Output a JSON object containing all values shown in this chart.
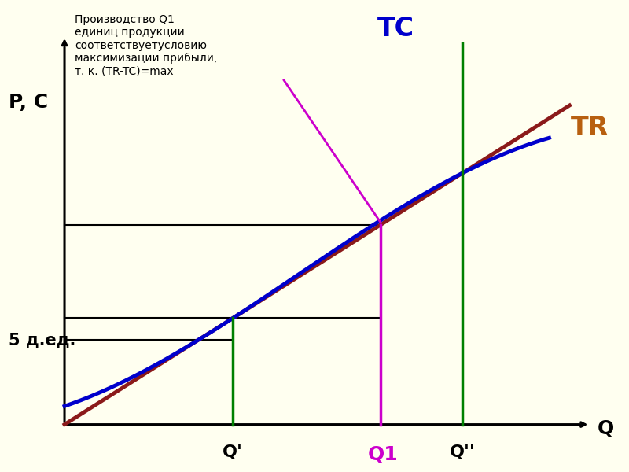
{
  "bg_color": "#FFFFF0",
  "chart_bg": "#FFFFF0",
  "title_text": "Производство Q1\nединиц продукции\nсоответствуетусловию\nмаксимизации прибыли,\nт. к. (TR-TC)=max",
  "ylabel_text": "P, C",
  "xlabel_text": "Q",
  "label_5ded": "5 д.ед.",
  "label_TC": "TC",
  "label_TR": "TR",
  "label_Qprime": "Q'",
  "label_Q1": "Q1",
  "label_Qdprime": "Q''",
  "TC_color": "#0000CC",
  "TR_color": "#8B1A1A",
  "Qprime_color": "#008000",
  "Q1_color": "#CC00CC",
  "Qdprime_color": "#008000",
  "annotation_color": "#CC00CC",
  "axis_color": "#000000",
  "figsize": [
    8.0,
    6.0
  ],
  "dpi": 100
}
